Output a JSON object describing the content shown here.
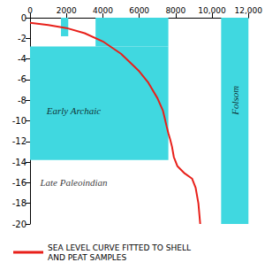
{
  "chart_data": {
    "type": "line",
    "x": [
      0,
      1000,
      2000,
      3000,
      4000,
      5000,
      6000,
      6500,
      7000,
      7300,
      7500,
      7600,
      7700,
      7800,
      7900,
      8100,
      8500,
      8900,
      9100,
      9250,
      9350
    ],
    "series": [
      {
        "name": "SEA LEVEL CURVE FITTED TO SHELL\nAND PEAT SAMPLES",
        "color": "#e8201a",
        "values": [
          -0.5,
          -0.7,
          -1.0,
          -1.5,
          -2.3,
          -3.5,
          -5.2,
          -6.3,
          -7.8,
          -9.0,
          -10.5,
          -11.2,
          -11.8,
          -12.5,
          -13.5,
          -14.4,
          -15.1,
          -15.6,
          -16.5,
          -18.0,
          -20.0
        ]
      }
    ],
    "xlim": [
      0,
      12000
    ],
    "xticks": [
      0,
      2000,
      4000,
      6000,
      8000,
      {
        "value": 10000,
        "label": "10,000"
      },
      {
        "value": 12000,
        "label": "12,000"
      }
    ],
    "ylim": [
      -20,
      0
    ],
    "yticks": [
      -20,
      -18,
      -16,
      -14,
      -12,
      -10,
      -8,
      -6,
      -4,
      -2,
      0
    ],
    "grid": false,
    "legend": "bottom",
    "bands": [
      {
        "x": [
          0,
          7600
        ],
        "y": [
          -13.8,
          -2.8
        ],
        "color": "#40d8e0"
      },
      {
        "x": [
          3600,
          7600
        ],
        "y": [
          -2.8,
          0
        ],
        "color": "#40d8e0"
      },
      {
        "x": [
          1700,
          2100
        ],
        "y": [
          -1.8,
          0
        ],
        "color": "#40d8e0"
      },
      {
        "x": [
          10500,
          12000
        ],
        "y": [
          -20,
          0
        ],
        "color": "#40d8e0"
      }
    ],
    "annotations": [
      {
        "text": "Early Archaic",
        "x": 2400,
        "y": -9
      },
      {
        "text": "Late Paleoindian",
        "x": 2400,
        "y": -16
      },
      {
        "text": "Folsom",
        "x": 11250,
        "y": -8
      }
    ]
  }
}
